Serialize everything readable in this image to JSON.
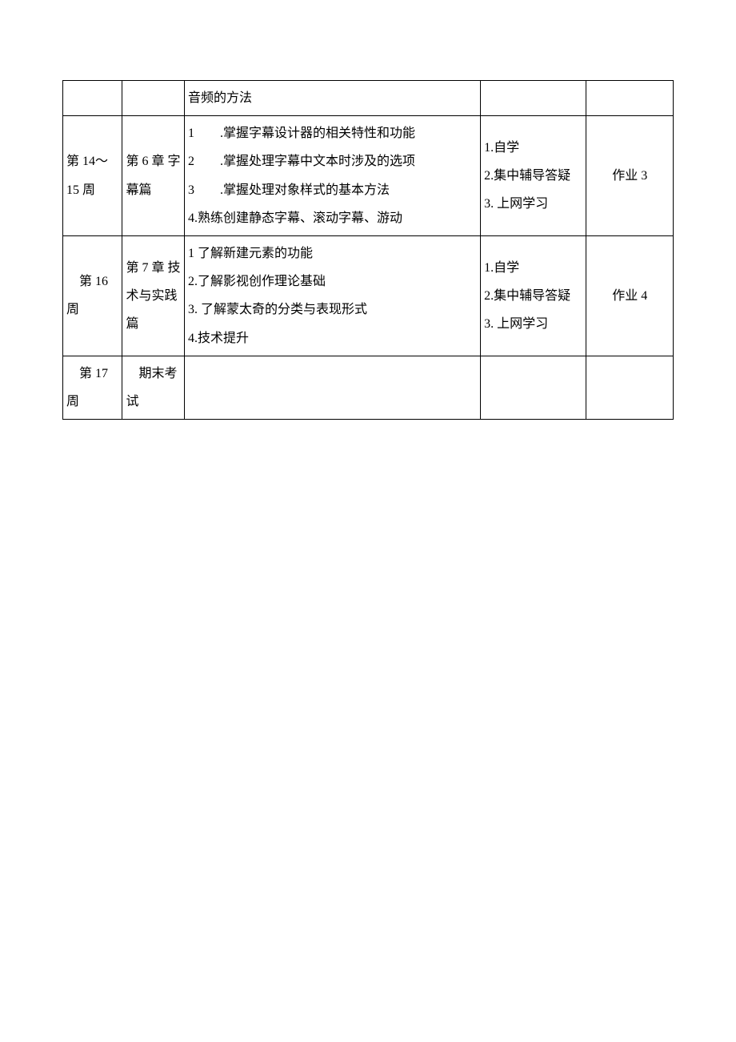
{
  "table": {
    "rows": [
      {
        "col1": "",
        "col2": "",
        "col3": "音频的方法",
        "col4": "",
        "col5": ""
      },
      {
        "col1": "第 14～15 周",
        "col2": "第 6 章 字幕篇",
        "col3_lines": [
          "1　　.掌握字幕设计器的相关特性和功能",
          "2　　.掌握处理字幕中文本时涉及的选项",
          "3　　.掌握处理对象样式的基本方法",
          "4.熟练创建静态字幕、滚动字幕、游动"
        ],
        "col4_lines": [
          "1.自学",
          "2.集中辅导答疑",
          "3. 上网学习"
        ],
        "col5": "作业 3"
      },
      {
        "col1": "　第 16 周",
        "col2": "第 7 章 技术与实践篇",
        "col3_lines": [
          "1 了解新建元素的功能",
          "2.了解影视创作理论基础",
          "3. 了解蒙太奇的分类与表现形式",
          "4.技术提升"
        ],
        "col4_lines": [
          "1.自学",
          "2.集中辅导答疑",
          "3. 上网学习"
        ],
        "col5": "作业 4"
      },
      {
        "col1": "　第 17 周",
        "col2": "　期末考试",
        "col3": "",
        "col4": "",
        "col5": ""
      }
    ]
  }
}
